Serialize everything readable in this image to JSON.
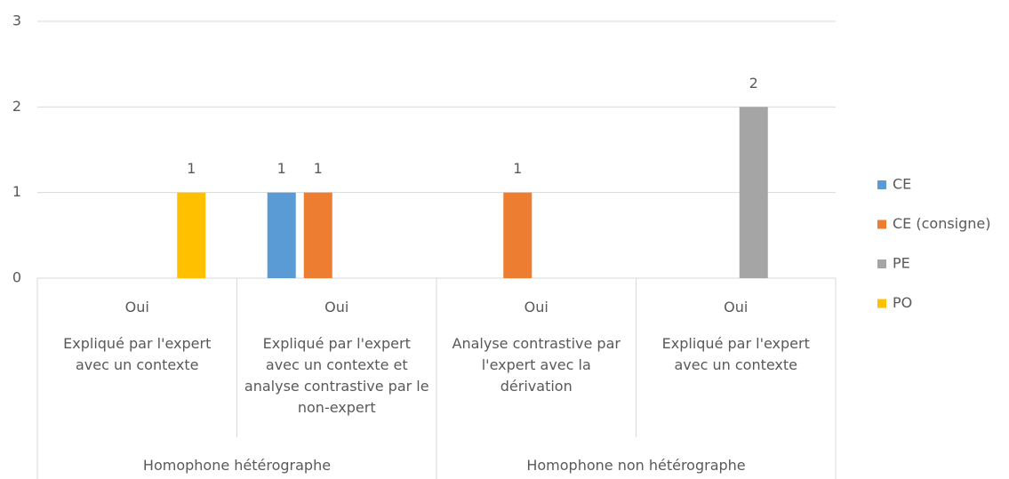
{
  "chart_data": {
    "type": "bar",
    "categories": [
      "Oui",
      "Oui",
      "Oui",
      "Oui"
    ],
    "category_details": [
      "Expliqué par l'expert avec un contexte",
      "Expliqué par l'expert avec un contexte et analyse contrastive par le non-expert",
      "Analyse contrastive par l'expert avec la dérivation",
      "Expliqué par l'expert avec un contexte"
    ],
    "groups": [
      "Homophone hétérographe",
      "Homophone non hétérographe"
    ],
    "series": [
      {
        "name": "CE",
        "color": "#5b9bd5",
        "values": [
          null,
          1,
          null,
          null
        ]
      },
      {
        "name": "CE (consigne)",
        "color": "#ed7d31",
        "values": [
          null,
          1,
          1,
          null
        ]
      },
      {
        "name": "PE",
        "color": "#a5a5a5",
        "values": [
          null,
          null,
          null,
          2
        ]
      },
      {
        "name": "PO",
        "color": "#ffc000",
        "values": [
          1,
          null,
          null,
          null
        ]
      }
    ],
    "ylim": [
      0,
      3
    ],
    "yticks": [
      0,
      1,
      2,
      3
    ],
    "grid": true,
    "legend": "right"
  }
}
